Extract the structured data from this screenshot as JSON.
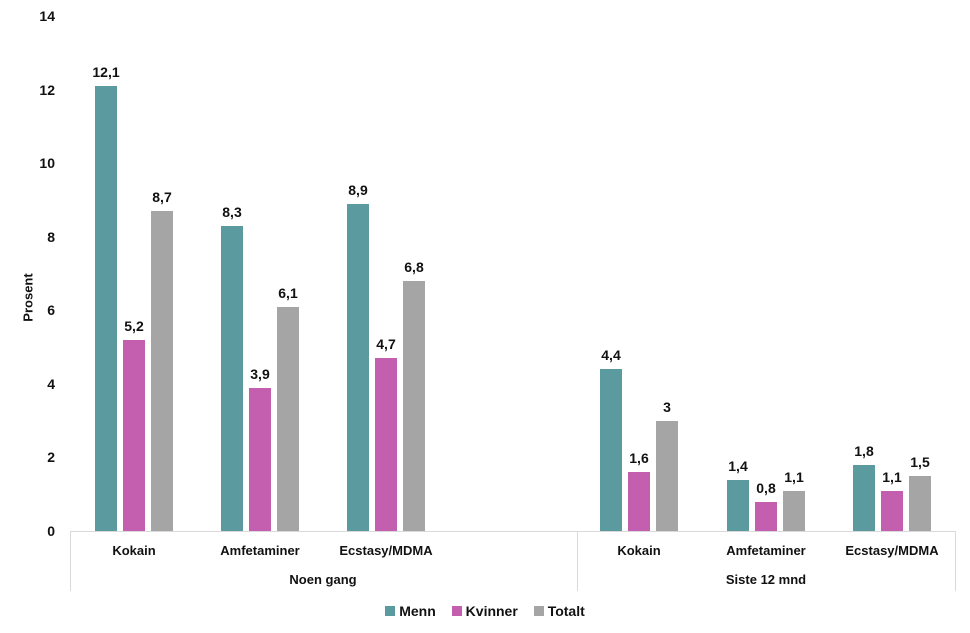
{
  "chart_data": {
    "type": "bar",
    "title": "",
    "xlabel": "",
    "ylabel": "Prosent",
    "ylim": [
      0,
      14
    ],
    "yticks": [
      "0",
      "2",
      "4",
      "6",
      "8",
      "10",
      "12",
      "14"
    ],
    "grid": false,
    "legend_position": "bottom",
    "groups": [
      {
        "label": "Noen gang",
        "categories": [
          "Kokain",
          "Amfetaminer",
          "Ecstasy/MDMA"
        ]
      },
      {
        "label": "Siste 12 mnd",
        "categories": [
          "Kokain",
          "Amfetaminer",
          "Ecstasy/MDMA"
        ]
      }
    ],
    "categories": [
      "Noen gang - Kokain",
      "Noen gang - Amfetaminer",
      "Noen gang - Ecstasy/MDMA",
      "Siste 12 mnd - Kokain",
      "Siste 12 mnd - Amfetaminer",
      "Siste 12 mnd - Ecstasy/MDMA"
    ],
    "series": [
      {
        "name": "Menn",
        "color": "#5b9ba0",
        "values": [
          12.1,
          8.3,
          8.9,
          4.4,
          1.4,
          1.8
        ],
        "labels": [
          "12,1",
          "8,3",
          "8,9",
          "4,4",
          "1,4",
          "1,8"
        ]
      },
      {
        "name": "Kvinner",
        "color": "#c45fb0",
        "values": [
          5.2,
          3.9,
          4.7,
          1.6,
          0.8,
          1.1
        ],
        "labels": [
          "5,2",
          "3,9",
          "4,7",
          "1,6",
          "0,8",
          "1,1"
        ]
      },
      {
        "name": "Totalt",
        "color": "#a5a5a5",
        "values": [
          8.7,
          6.1,
          6.8,
          3.0,
          1.1,
          1.5
        ],
        "labels": [
          "8,7",
          "6,1",
          "6,8",
          "3",
          "1,1",
          "1,5"
        ]
      }
    ]
  },
  "legend": {
    "items": [
      {
        "label": "Menn",
        "color": "#5b9ba0"
      },
      {
        "label": "Kvinner",
        "color": "#c45fb0"
      },
      {
        "label": "Totalt",
        "color": "#a5a5a5"
      }
    ]
  }
}
